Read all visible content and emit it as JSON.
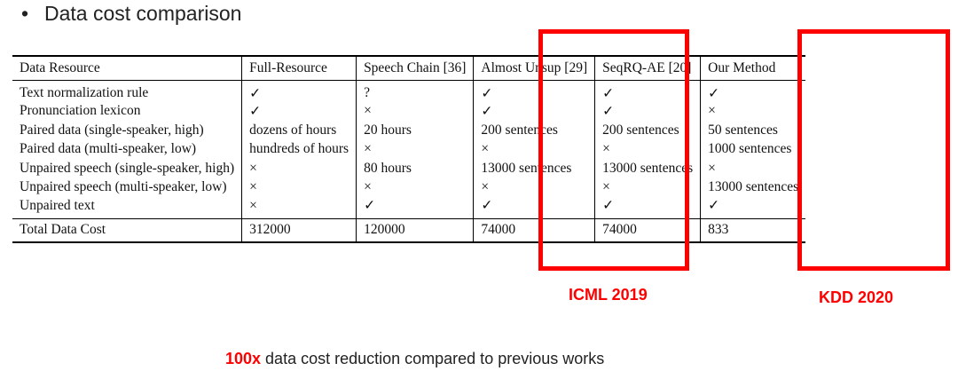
{
  "slide": {
    "bullet": "•",
    "title": "Data cost comparison"
  },
  "table": {
    "headers": [
      "Data Resource",
      "Full-Resource",
      "Speech Chain [36]",
      "Almost Unsup [29]",
      "SeqRQ-AE [20]",
      "Our Method"
    ],
    "rows": [
      [
        "Text normalization rule",
        "✓",
        "?",
        "✓",
        "✓",
        "✓"
      ],
      [
        "Pronunciation lexicon",
        "✓",
        "×",
        "✓",
        "✓",
        "×"
      ],
      [
        "Paired data (single-speaker, high)",
        "dozens of hours",
        "20 hours",
        "200 sentences",
        "200 sentences",
        "50 sentences"
      ],
      [
        "Paired data (multi-speaker, low)",
        "hundreds of hours",
        "×",
        "×",
        "×",
        "1000 sentences"
      ],
      [
        "Unpaired speech (single-speaker, high)",
        "×",
        "80 hours",
        "13000 sentences",
        "13000 sentences",
        "×"
      ],
      [
        "Unpaired speech (multi-speaker, low)",
        "×",
        "×",
        "×",
        "×",
        "13000 sentences"
      ],
      [
        "Unpaired text",
        "×",
        "✓",
        "✓",
        "✓",
        "✓"
      ]
    ],
    "total": [
      "Total Data Cost",
      "312000",
      "120000",
      "74000",
      "74000",
      "833"
    ]
  },
  "highlights": {
    "color": "#ff0000",
    "left_label": "ICML 2019",
    "right_label": "KDD 2020"
  },
  "footer": {
    "emphasis": "100x",
    "text": " data cost reduction compared to previous works"
  }
}
